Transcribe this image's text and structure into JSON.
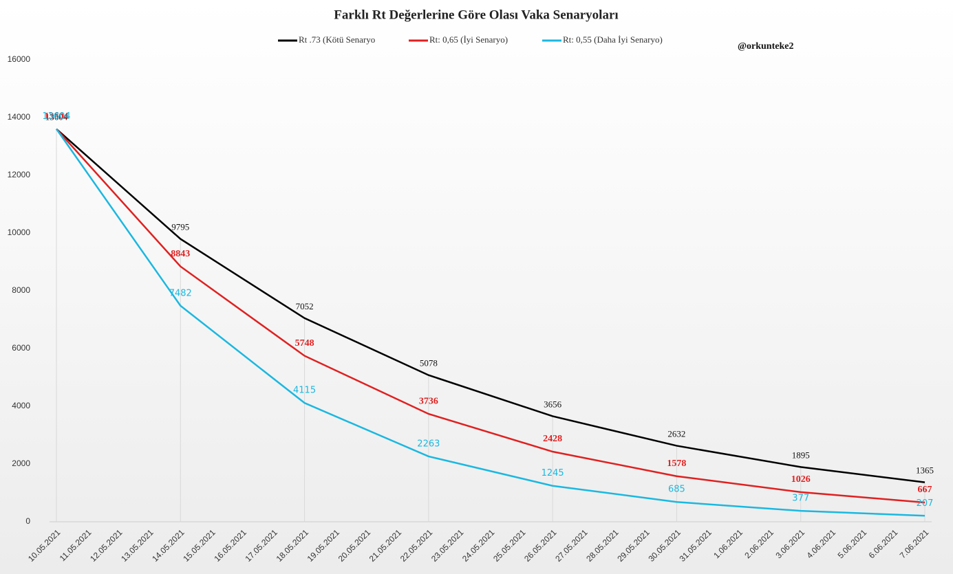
{
  "chart_data": {
    "type": "line",
    "title": "Farklı Rt Değerlerine Göre Olası Vaka Senaryoları",
    "annotation": "@orkunteke2",
    "categories": [
      "10.05.2021",
      "11.05.2021",
      "12.05.2021",
      "13.05.2021",
      "14.05.2021",
      "15.05.2021",
      "16.05.2021",
      "17.05.2021",
      "18.05.2021",
      "19.05.2021",
      "20.05.2021",
      "21.05.2021",
      "22.05.2021",
      "23.05.2021",
      "24.05.2021",
      "25.05.2021",
      "26.05.2021",
      "27.05.2021",
      "28.05.2021",
      "29.05.2021",
      "30.05.2021",
      "31.05.2021",
      "1.06.2021",
      "2.06.2021",
      "3.06.2021",
      "4.06.2021",
      "5.06.2021",
      "6.06.2021",
      "7.06.2021"
    ],
    "x": [
      "10.05.2021",
      "14.05.2021",
      "18.05.2021",
      "22.05.2021",
      "26.05.2021",
      "30.05.2021",
      "3.06.2021",
      "7.06.2021"
    ],
    "series": [
      {
        "name": "Rt .73 (Kötü Senaryo",
        "color": "#000000",
        "values": [
          13604,
          9795,
          7052,
          5078,
          3656,
          2632,
          1895,
          1365
        ]
      },
      {
        "name": "Rt: 0,65 (İyi Senaryo)",
        "color": "#e02020",
        "values": [
          13604,
          8843,
          5748,
          3736,
          2428,
          1578,
          1026,
          667
        ]
      },
      {
        "name": "Rt: 0,55 (Daha İyi Senaryo)",
        "color": "#1ab8e0",
        "values": [
          13604,
          7482,
          4115,
          2263,
          1245,
          685,
          377,
          207
        ]
      }
    ],
    "ylim": [
      0,
      16000
    ],
    "yticks": [
      0,
      2000,
      4000,
      6000,
      8000,
      10000,
      12000,
      14000,
      16000
    ],
    "legend": "top"
  }
}
